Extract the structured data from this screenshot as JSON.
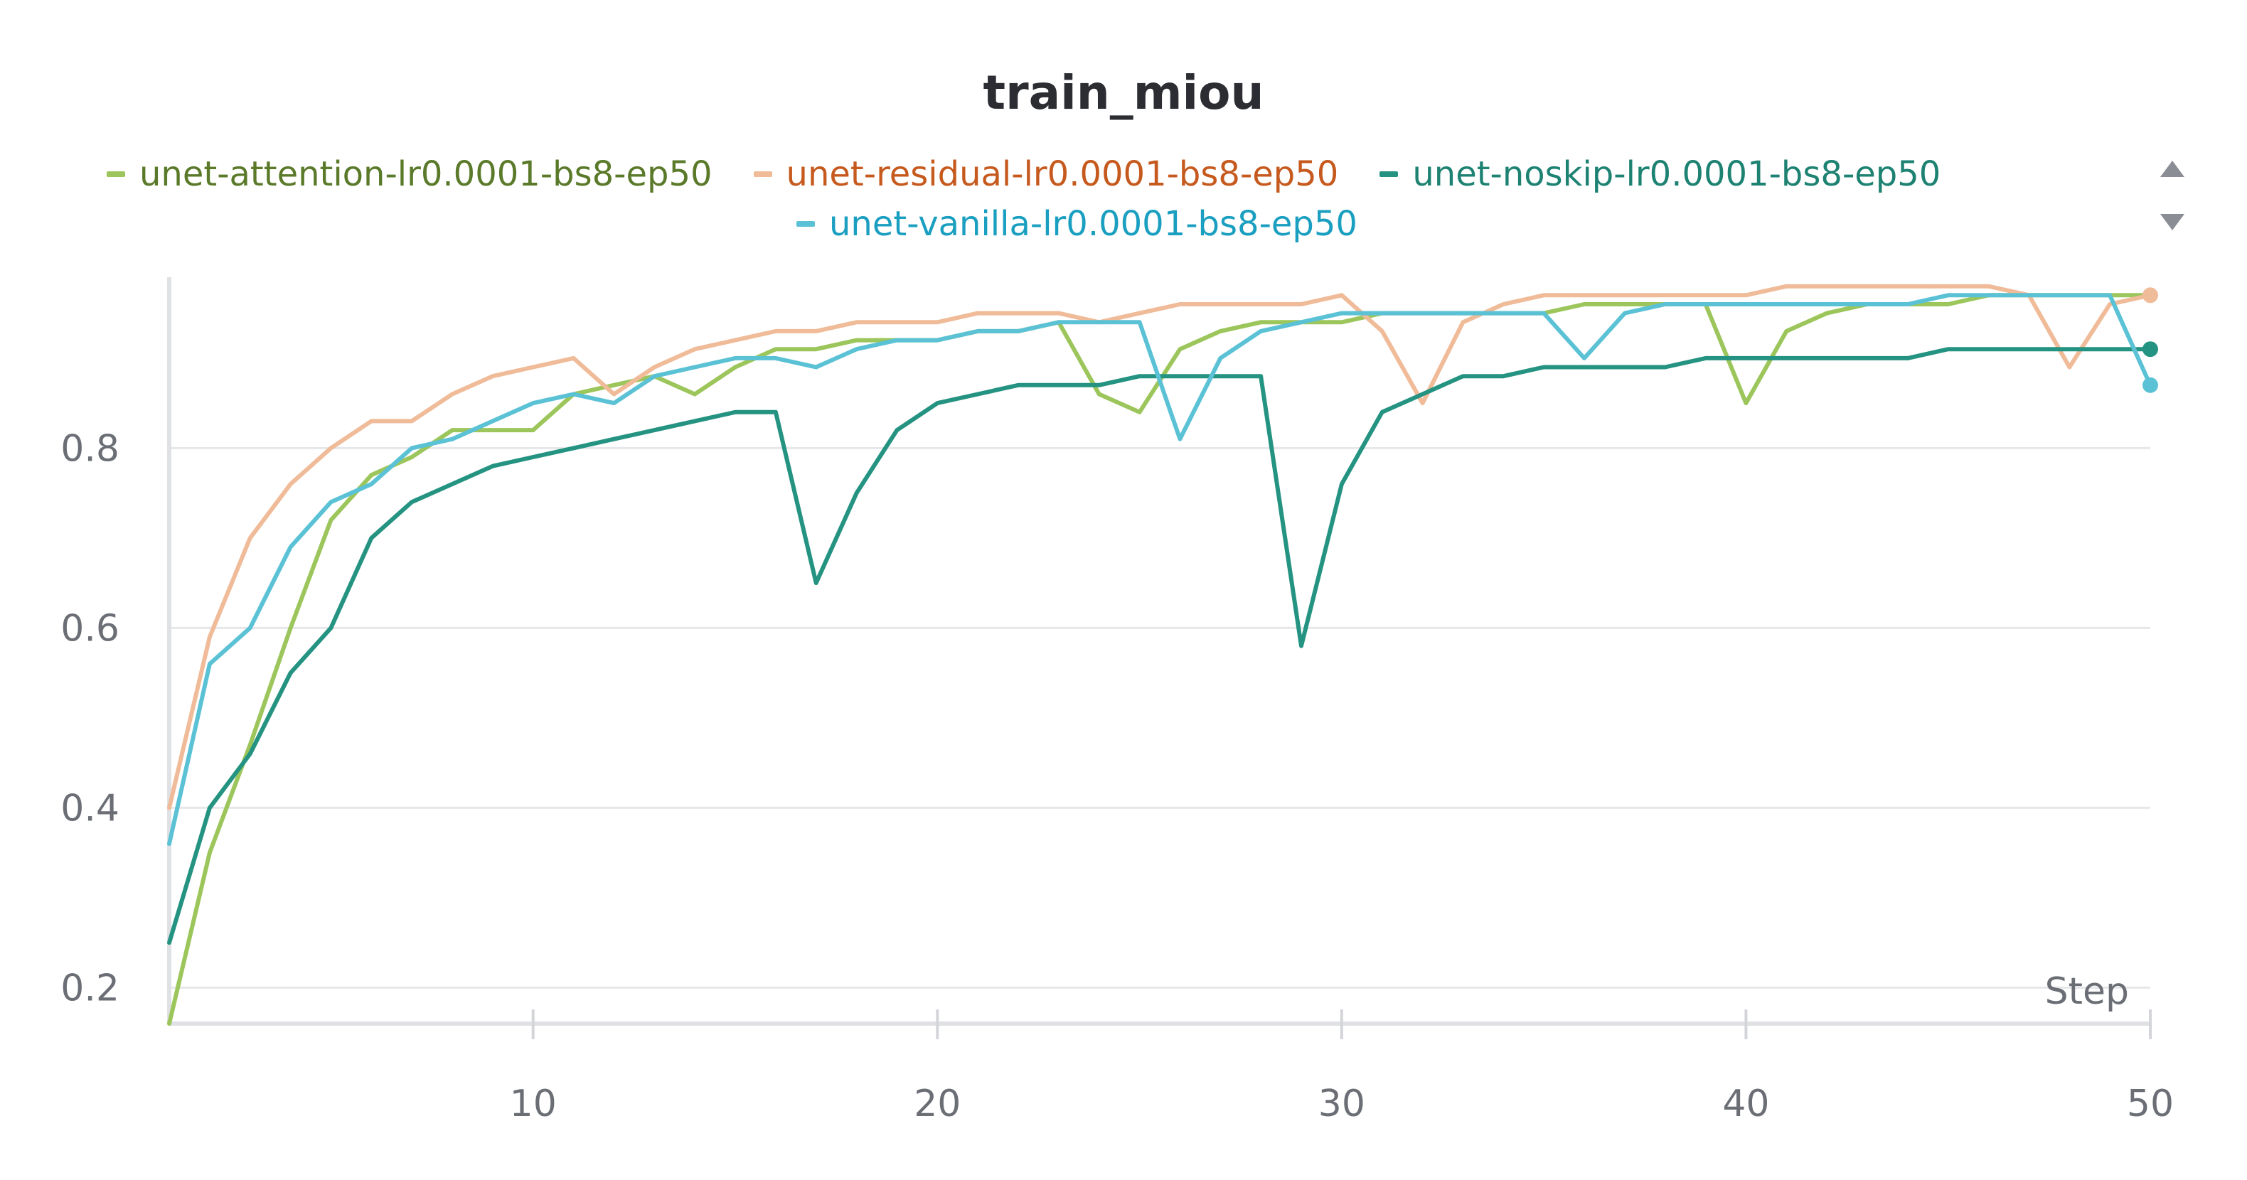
{
  "chart_data": {
    "type": "line",
    "title": "train_miou",
    "xlabel": "Step",
    "ylabel": "",
    "xlim": [
      1,
      50
    ],
    "ylim": [
      0.16,
      0.99
    ],
    "x_ticks": [
      10,
      20,
      30,
      40,
      50
    ],
    "y_ticks": [
      0.2,
      0.4,
      0.6,
      0.8
    ],
    "grid": "horizontal",
    "legend_position": "top-center",
    "x": [
      1,
      2,
      3,
      4,
      5,
      6,
      7,
      8,
      9,
      10,
      11,
      12,
      13,
      14,
      15,
      16,
      17,
      18,
      19,
      20,
      21,
      22,
      23,
      24,
      25,
      26,
      27,
      28,
      29,
      30,
      31,
      32,
      33,
      34,
      35,
      36,
      37,
      38,
      39,
      40,
      41,
      42,
      43,
      44,
      45,
      46,
      47,
      48,
      49,
      50
    ],
    "series": [
      {
        "name": "unet-attention-lr0.0001-bs8-ep50",
        "color": "#9cc65b",
        "label_color": "#5a7a2a",
        "values": [
          0.16,
          0.35,
          0.47,
          0.6,
          0.72,
          0.77,
          0.79,
          0.82,
          0.82,
          0.82,
          0.86,
          0.87,
          0.88,
          0.86,
          0.89,
          0.91,
          0.91,
          0.92,
          0.92,
          0.92,
          0.93,
          0.93,
          0.94,
          0.86,
          0.84,
          0.91,
          0.93,
          0.94,
          0.94,
          0.94,
          0.95,
          0.95,
          0.95,
          0.95,
          0.95,
          0.96,
          0.96,
          0.96,
          0.96,
          0.85,
          0.93,
          0.95,
          0.96,
          0.96,
          0.96,
          0.97,
          0.97,
          0.97,
          0.97,
          0.97
        ],
        "end_marker": false
      },
      {
        "name": "unet-residual-lr0.0001-bs8-ep50",
        "color": "#f0bb98",
        "label_color": "#c65a1e",
        "values": [
          0.4,
          0.59,
          0.7,
          0.76,
          0.8,
          0.83,
          0.83,
          0.86,
          0.88,
          0.89,
          0.9,
          0.86,
          0.89,
          0.91,
          0.92,
          0.93,
          0.93,
          0.94,
          0.94,
          0.94,
          0.95,
          0.95,
          0.95,
          0.94,
          0.95,
          0.96,
          0.96,
          0.96,
          0.96,
          0.97,
          0.93,
          0.85,
          0.94,
          0.96,
          0.97,
          0.97,
          0.97,
          0.97,
          0.97,
          0.97,
          0.98,
          0.98,
          0.98,
          0.98,
          0.98,
          0.98,
          0.97,
          0.89,
          0.96,
          0.97
        ],
        "end_marker": true
      },
      {
        "name": "unet-noskip-lr0.0001-bs8-ep50",
        "color": "#259381",
        "label_color": "#1d8272",
        "values": [
          0.25,
          0.4,
          0.46,
          0.55,
          0.6,
          0.7,
          0.74,
          0.76,
          0.78,
          0.79,
          0.8,
          0.81,
          0.82,
          0.83,
          0.84,
          0.84,
          0.65,
          0.75,
          0.82,
          0.85,
          0.86,
          0.87,
          0.87,
          0.87,
          0.88,
          0.88,
          0.88,
          0.88,
          0.58,
          0.76,
          0.84,
          0.86,
          0.88,
          0.88,
          0.89,
          0.89,
          0.89,
          0.89,
          0.9,
          0.9,
          0.9,
          0.9,
          0.9,
          0.9,
          0.91,
          0.91,
          0.91,
          0.91,
          0.91,
          0.91
        ],
        "end_marker": true
      },
      {
        "name": "unet-vanilla-lr0.0001-bs8-ep50",
        "color": "#5bc2d6",
        "label_color": "#1a9fc0",
        "values": [
          0.36,
          0.56,
          0.6,
          0.69,
          0.74,
          0.76,
          0.8,
          0.81,
          0.83,
          0.85,
          0.86,
          0.85,
          0.88,
          0.89,
          0.9,
          0.9,
          0.89,
          0.91,
          0.92,
          0.92,
          0.93,
          0.93,
          0.94,
          0.94,
          0.94,
          0.81,
          0.9,
          0.93,
          0.94,
          0.95,
          0.95,
          0.95,
          0.95,
          0.95,
          0.95,
          0.9,
          0.95,
          0.96,
          0.96,
          0.96,
          0.96,
          0.96,
          0.96,
          0.96,
          0.97,
          0.97,
          0.97,
          0.97,
          0.97,
          0.87
        ],
        "end_marker": true
      }
    ]
  },
  "legend": {
    "scroll_up_icon": "triangle-up-icon",
    "scroll_down_icon": "triangle-down-icon"
  }
}
